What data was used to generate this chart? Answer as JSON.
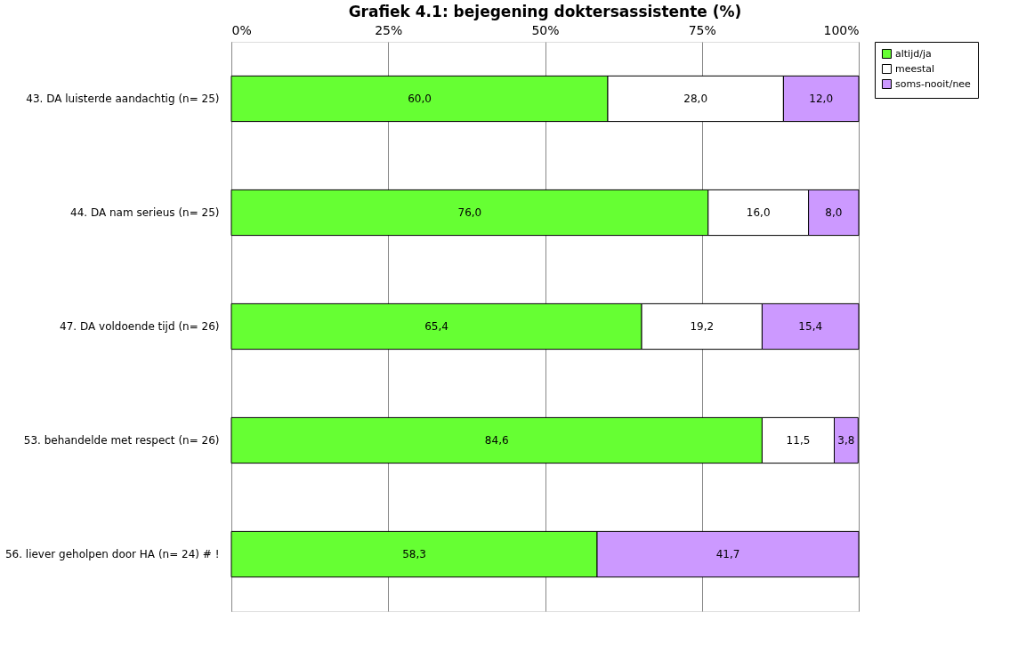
{
  "chart_data": {
    "type": "bar",
    "orientation": "horizontal",
    "stacked": true,
    "title": "Grafiek 4.1: bejegening doktersassistente (%)",
    "categories": [
      "43. DA luisterde aandachtig (n= 25)",
      "44. DA nam serieus (n= 25)",
      "47. DA voldoende tijd (n= 26)",
      "53. behandelde met respect (n= 26)",
      "56. liever geholpen door HA (n= 24) # !"
    ],
    "series": [
      {
        "name": "altijd/ja",
        "color": "#66ff33",
        "values": [
          60.0,
          76.0,
          65.4,
          84.6,
          58.3
        ],
        "value_labels": [
          "60,0",
          "76,0",
          "65,4",
          "84,6",
          "58,3"
        ]
      },
      {
        "name": "meestal",
        "color": "#ffffff",
        "values": [
          28.0,
          16.0,
          19.2,
          11.5,
          null
        ],
        "value_labels": [
          "28,0",
          "16,0",
          "19,2",
          "11,5",
          null
        ]
      },
      {
        "name": "soms-nooit/nee",
        "color": "#cc99ff",
        "values": [
          12.0,
          8.0,
          15.4,
          3.8,
          41.7
        ],
        "value_labels": [
          "12,0",
          "8,0",
          "15,4",
          "3,8",
          "41,7"
        ]
      }
    ],
    "xlim": [
      0,
      100
    ],
    "xticks": [
      {
        "value": 0,
        "label": "0%"
      },
      {
        "value": 25,
        "label": "25%"
      },
      {
        "value": 50,
        "label": "50%"
      },
      {
        "value": 75,
        "label": "75%"
      },
      {
        "value": 100,
        "label": "100%"
      }
    ],
    "grid": "x",
    "legend": "right"
  }
}
